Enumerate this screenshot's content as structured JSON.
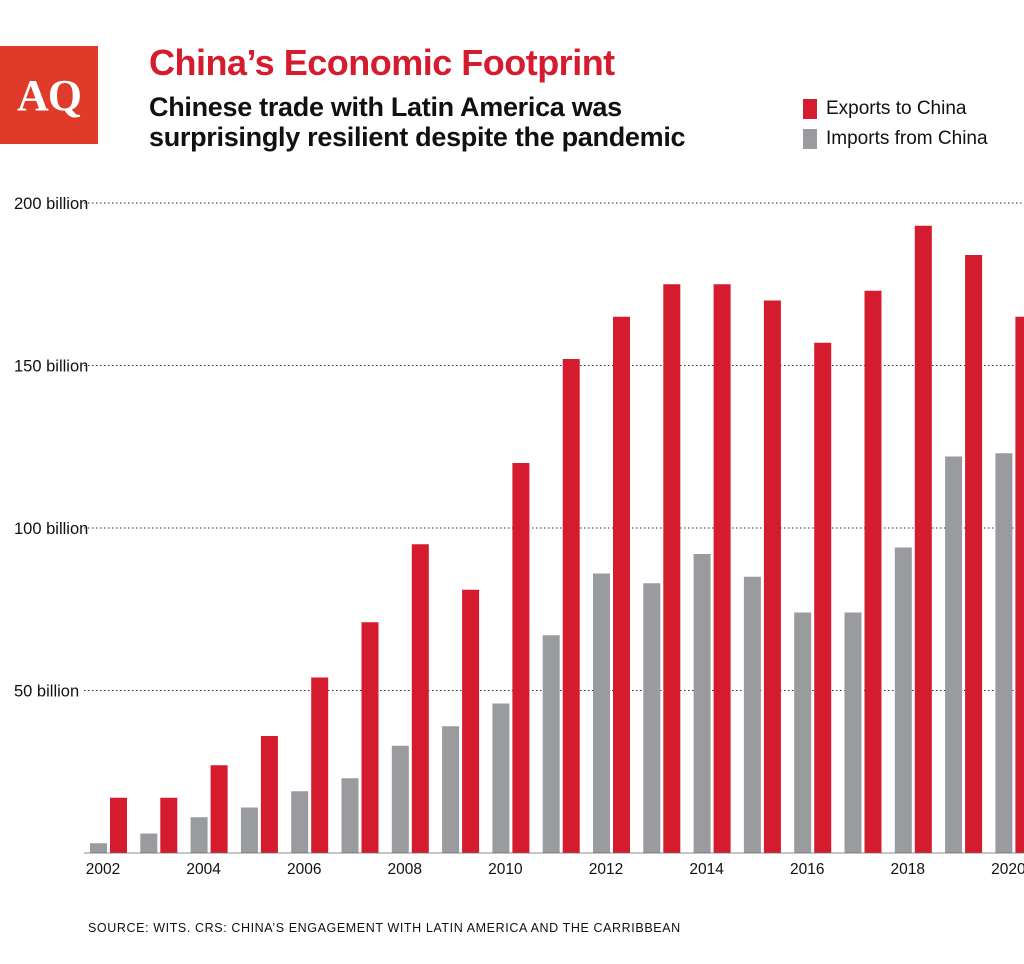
{
  "header": {
    "logo_text": "AQ",
    "title": "China’s Economic Footprint",
    "subtitle_line1": "Chinese trade with Latin America was",
    "subtitle_line2": "surprisingly resilient despite the pandemic"
  },
  "footer": {
    "source": "SOURCE: WITS. CRS: CHINA’S ENGAGEMENT WITH LATIN AMERICA AND THE CARRIBBEAN"
  },
  "colors": {
    "brand": "#e03a2a",
    "exports": "#d51b2e",
    "imports": "#9a9b9f",
    "grid": "#333333"
  },
  "chart_data": {
    "type": "bar",
    "title": "China’s Economic Footprint",
    "subtitle": "Chinese trade with Latin America was surprisingly resilient despite the pandemic",
    "categories": [
      "2002",
      "2003",
      "2004",
      "2005",
      "2006",
      "2007",
      "2008",
      "2009",
      "2010",
      "2011",
      "2012",
      "2013",
      "2014",
      "2015",
      "2016",
      "2017",
      "2018",
      "2019",
      "2020"
    ],
    "x_tick_labels": [
      "2002",
      "2004",
      "2006",
      "2008",
      "2010",
      "2012",
      "2014",
      "2016",
      "2018",
      "2020"
    ],
    "y_ticks": [
      50,
      100,
      150,
      200
    ],
    "y_tick_labels": [
      "50 billion",
      "100 billion",
      "150 billion",
      "200 billion"
    ],
    "ylim": [
      0,
      200
    ],
    "grid": "dotted horizontal",
    "legend_position": "top-right",
    "series": [
      {
        "name": "Exports to China",
        "color": "#d51b2e",
        "values": [
          17,
          17,
          27,
          36,
          54,
          71,
          95,
          81,
          120,
          152,
          165,
          175,
          175,
          170,
          157,
          173,
          193,
          184,
          165
        ]
      },
      {
        "name": "Imports from China",
        "color": "#9a9b9f",
        "values": [
          3,
          6,
          11,
          14,
          19,
          23,
          33,
          39,
          46,
          67,
          86,
          83,
          92,
          85,
          74,
          74,
          94,
          122,
          123
        ]
      }
    ]
  }
}
